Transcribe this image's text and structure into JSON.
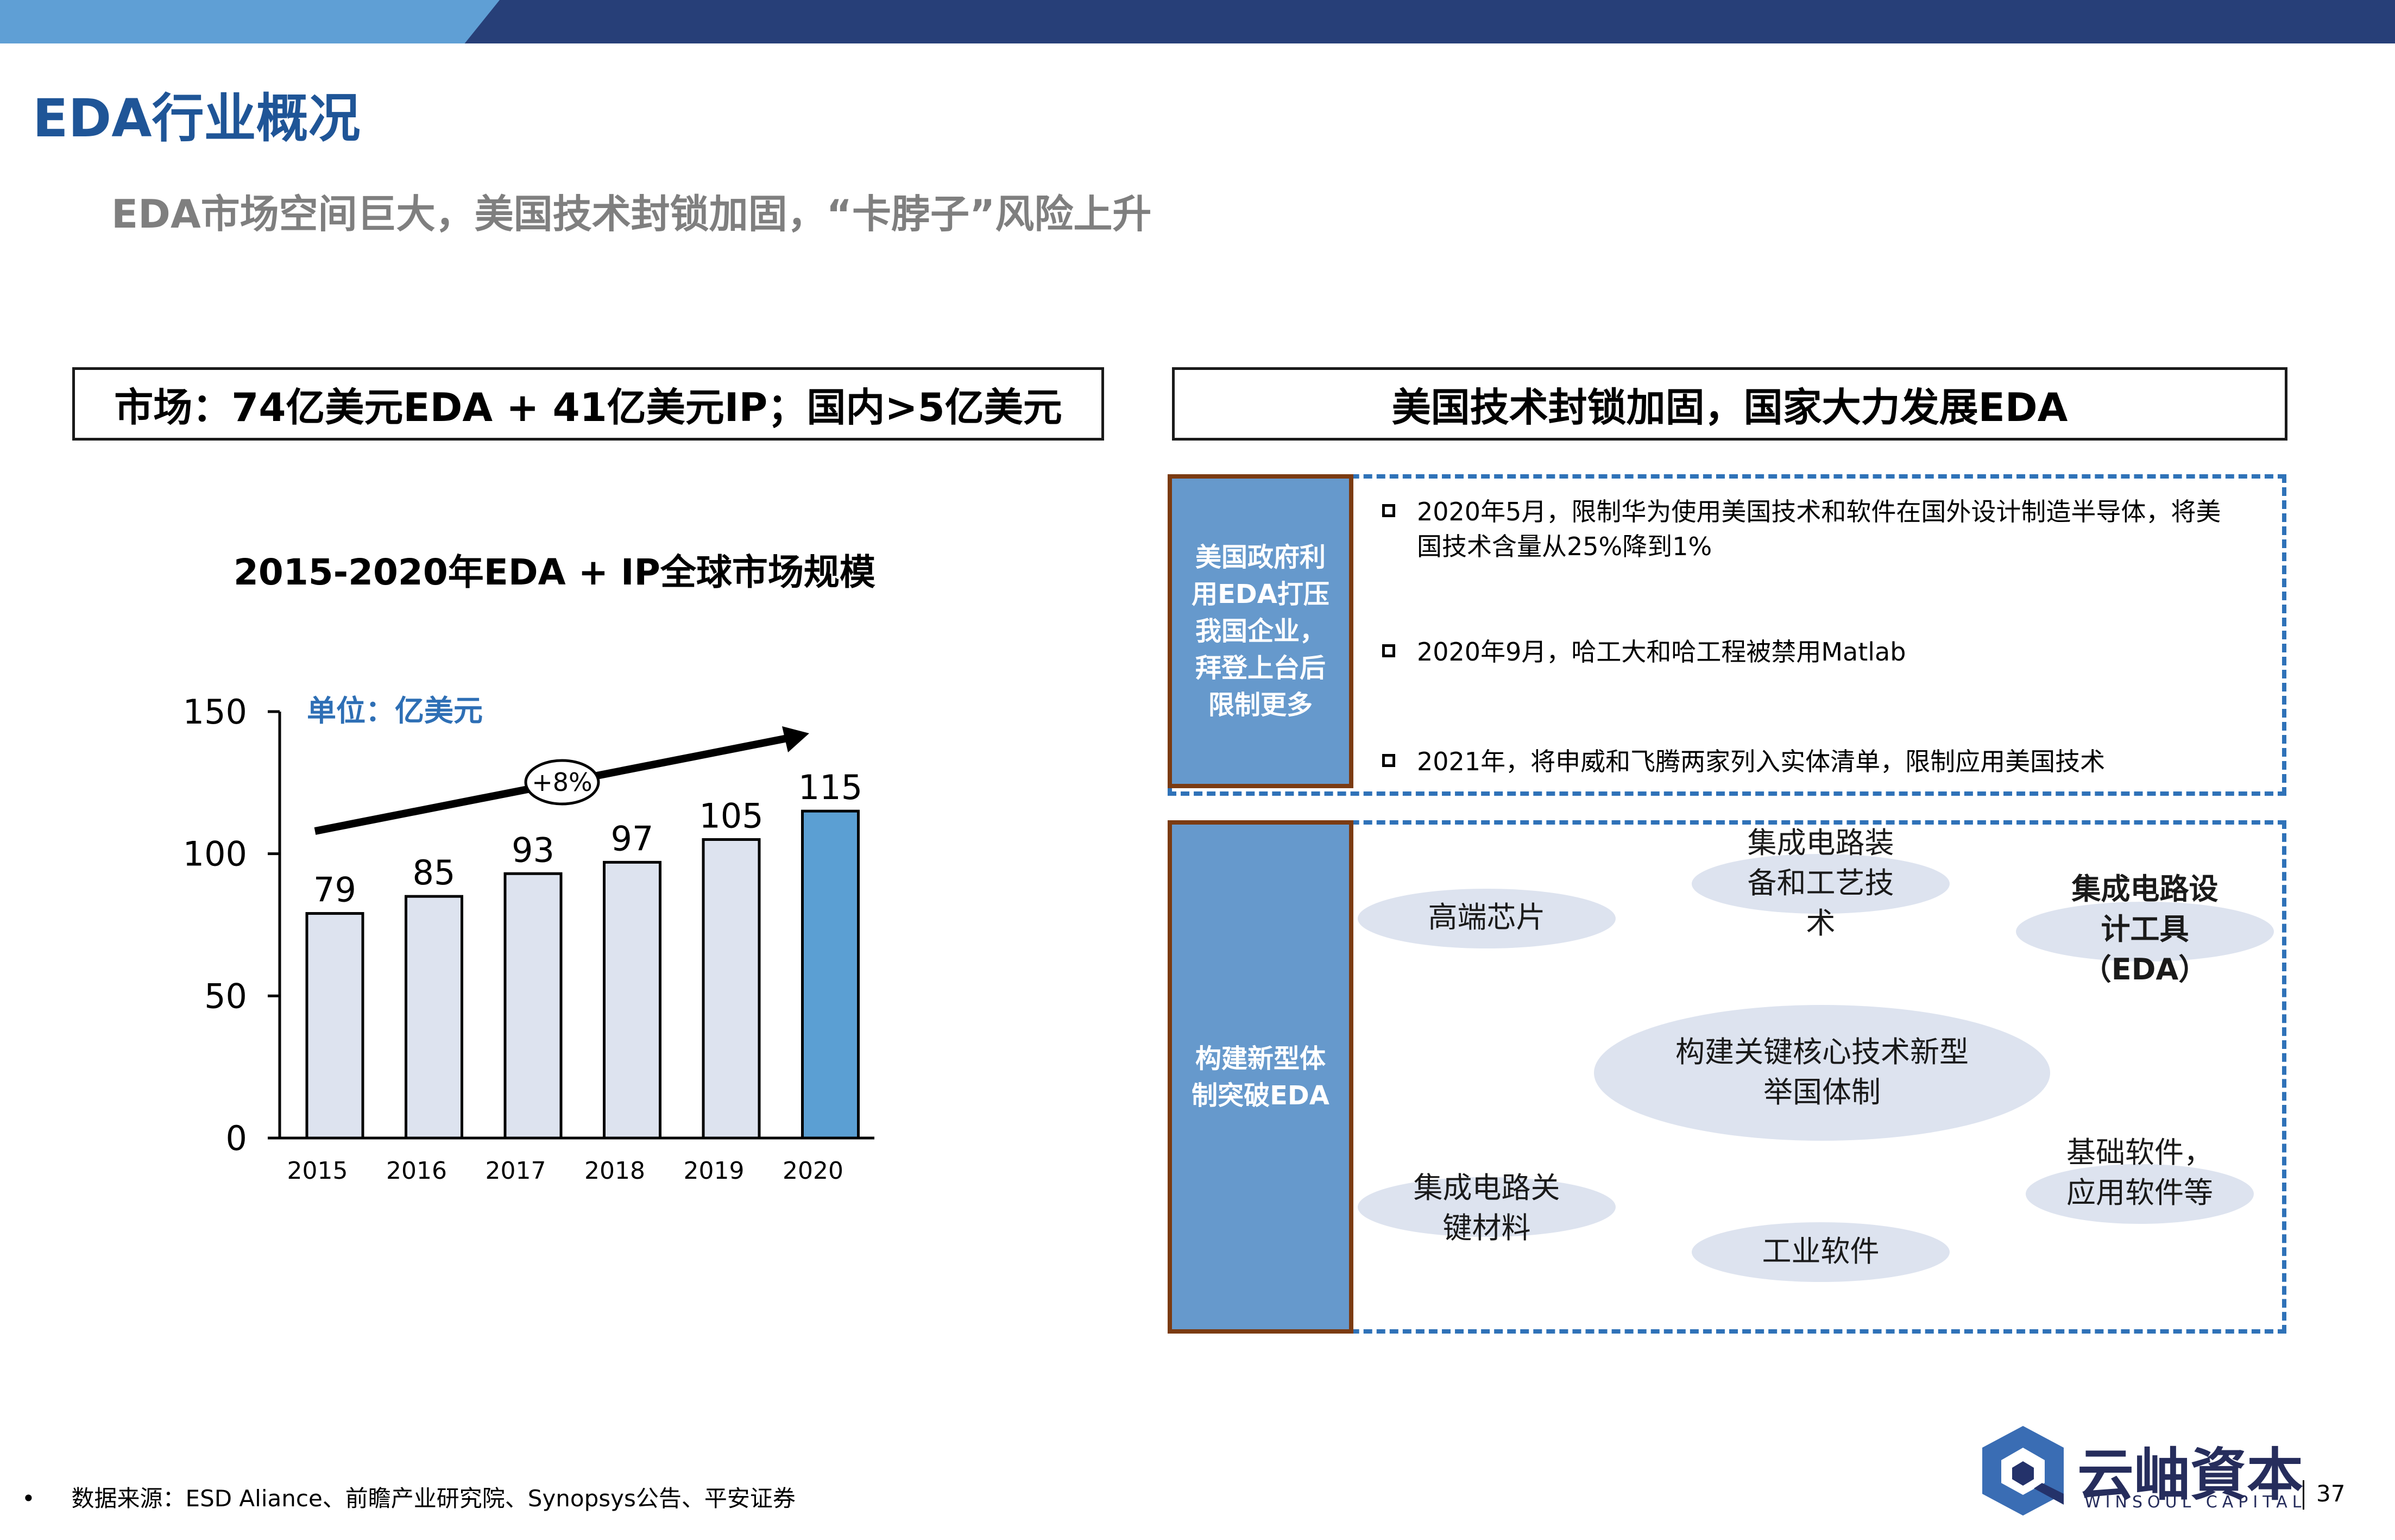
{
  "header": {
    "title": "EDA行业概况",
    "subtitle": "EDA市场空间巨大，美国技术封锁加固，“卡脖子”风险上升"
  },
  "left_panel": {
    "heading": "市场：74亿美元EDA + 41亿美元IP；国内>5亿美元"
  },
  "chart_data": {
    "type": "bar",
    "title": "2015-2020年EDA + IP全球市场规模",
    "unit_label": "单位：亿美元",
    "categories": [
      "2015",
      "2016",
      "2017",
      "2018",
      "2019",
      "2020"
    ],
    "values": [
      79,
      85,
      93,
      97,
      105,
      115
    ],
    "ylim": [
      0,
      150
    ],
    "yticks": [
      0,
      50,
      100,
      150
    ],
    "grid": false,
    "annotation": "+8%",
    "bar_color": "#dde3ef",
    "highlight_color": "#5b9fd3",
    "highlight_index": 5
  },
  "right_panel": {
    "heading": "美国技术封锁加固，国家大力发展EDA",
    "block1": {
      "label": "美国政府利用EDA打压我国企业，拜登上台后限制更多",
      "bullets": [
        "2020年5月，限制华为使用美国技术和软件在国外设计制造半导体，将美国技术含量从25%降到1%",
        "2020年9月，哈工大和哈工程被禁用Matlab",
        "2021年，将申威和飞腾两家列入实体清单，限制应用美国技术"
      ]
    },
    "block2": {
      "label": "构建新型体制突破EDA",
      "items": {
        "chips": "高端芯片",
        "equipment": "集成电路装备和工艺技术",
        "eda_tools": "集成电路设计工具（EDA）",
        "core": "构建关键核心技术新型举国体制",
        "materials": "集成电路关键材料",
        "industrial": "工业软件",
        "software": "基础软件，应用软件等"
      }
    }
  },
  "footer": {
    "source": "数据来源：ESD Aliance、前瞻产业研究院、Synopsys公告、平安证券",
    "logo_text": "云岫資本",
    "logo_sub": "WINSOUL CAPITAL",
    "page_number": "37"
  },
  "colors": {
    "navy": "#273f78",
    "title_blue": "#1f5597",
    "panel_blue": "#6699cc",
    "dash_blue": "#2f72b8"
  }
}
